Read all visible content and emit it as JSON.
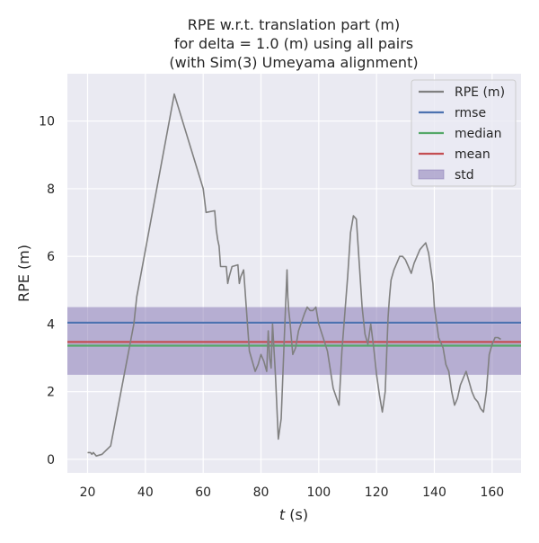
{
  "chart_data": {
    "type": "line",
    "title_lines": [
      "RPE w.r.t. translation part (m)",
      "for delta = 1.0 (m) using all pairs",
      "(with Sim(3) Umeyama alignment)"
    ],
    "xlabel": "t (s)",
    "xlabel_italic_part": "t",
    "xlabel_rest": " (s)",
    "ylabel": "RPE (m)",
    "xlim": [
      13,
      170
    ],
    "ylim": [
      -0.4,
      11.4
    ],
    "xticks": [
      20,
      40,
      60,
      80,
      100,
      120,
      140,
      160
    ],
    "yticks": [
      0,
      2,
      4,
      6,
      8,
      10
    ],
    "grid": true,
    "legend_position": "top-right",
    "colors": {
      "background": "#eaeaf2",
      "grid": "#ffffff",
      "rpe": "#808080",
      "rmse": "#4c72b0",
      "median": "#55a868",
      "mean": "#c44e52",
      "std_fill": "#8172b2"
    },
    "series": [
      {
        "name": "RPE (m)",
        "x": [
          20,
          20.5,
          21,
          21.5,
          22,
          22.5,
          23,
          25,
          28,
          36,
          37,
          50,
          60,
          61,
          64,
          64.5,
          65,
          65.5,
          66,
          68,
          68.5,
          69,
          70,
          72,
          72.5,
          73,
          74,
          76,
          78,
          79,
          80,
          81,
          82,
          82.5,
          83,
          83.5,
          84,
          85,
          86,
          87,
          88,
          89,
          89.3,
          89.6,
          90,
          91,
          92,
          93,
          95,
          96,
          97,
          98,
          99,
          100,
          103,
          105,
          107,
          108,
          110,
          111,
          112,
          113,
          114,
          115,
          116,
          117,
          118,
          119,
          120,
          121,
          122,
          123,
          124,
          124.5,
          125,
          126,
          127,
          128,
          129,
          130,
          131,
          132,
          133,
          134,
          135,
          136,
          137,
          138,
          139,
          139.5,
          140,
          141,
          141.5,
          142,
          143,
          144,
          145,
          146,
          147,
          148,
          149,
          150,
          151,
          152,
          153,
          154,
          155,
          156,
          157,
          158,
          159,
          160,
          161,
          162,
          163
        ],
        "values": [
          0.2,
          0.2,
          0.2,
          0.15,
          0.2,
          0.15,
          0.1,
          0.15,
          0.4,
          4.0,
          4.8,
          10.8,
          8.0,
          7.3,
          7.35,
          6.8,
          6.5,
          6.3,
          5.7,
          5.7,
          5.2,
          5.4,
          5.7,
          5.75,
          5.2,
          5.4,
          5.6,
          3.2,
          2.6,
          2.8,
          3.1,
          2.9,
          2.6,
          3.8,
          3.0,
          2.7,
          4.0,
          2.5,
          0.6,
          1.2,
          3.4,
          5.6,
          4.8,
          4.4,
          4.1,
          3.1,
          3.3,
          3.8,
          4.3,
          4.5,
          4.4,
          4.4,
          4.5,
          4.0,
          3.2,
          2.1,
          1.6,
          3.2,
          5.4,
          6.7,
          7.2,
          7.1,
          5.8,
          4.5,
          3.7,
          3.4,
          4.0,
          3.3,
          2.5,
          1.9,
          1.4,
          2.0,
          4.2,
          4.8,
          5.3,
          5.6,
          5.8,
          6.0,
          6.0,
          5.9,
          5.7,
          5.5,
          5.8,
          6.0,
          6.2,
          6.3,
          6.4,
          6.1,
          5.5,
          5.2,
          4.5,
          3.9,
          3.6,
          3.5,
          3.3,
          2.8,
          2.6,
          2.0,
          1.6,
          1.8,
          2.2,
          2.4,
          2.6,
          2.3,
          2.0,
          1.8,
          1.7,
          1.5,
          1.4,
          2.0,
          3.1,
          3.4,
          3.6,
          3.6,
          3.55
        ]
      },
      {
        "name": "rmse",
        "value": 4.04
      },
      {
        "name": "median",
        "value": 3.36
      },
      {
        "name": "mean",
        "value": 3.47
      },
      {
        "name": "std",
        "range": [
          2.5,
          4.5
        ]
      }
    ]
  }
}
